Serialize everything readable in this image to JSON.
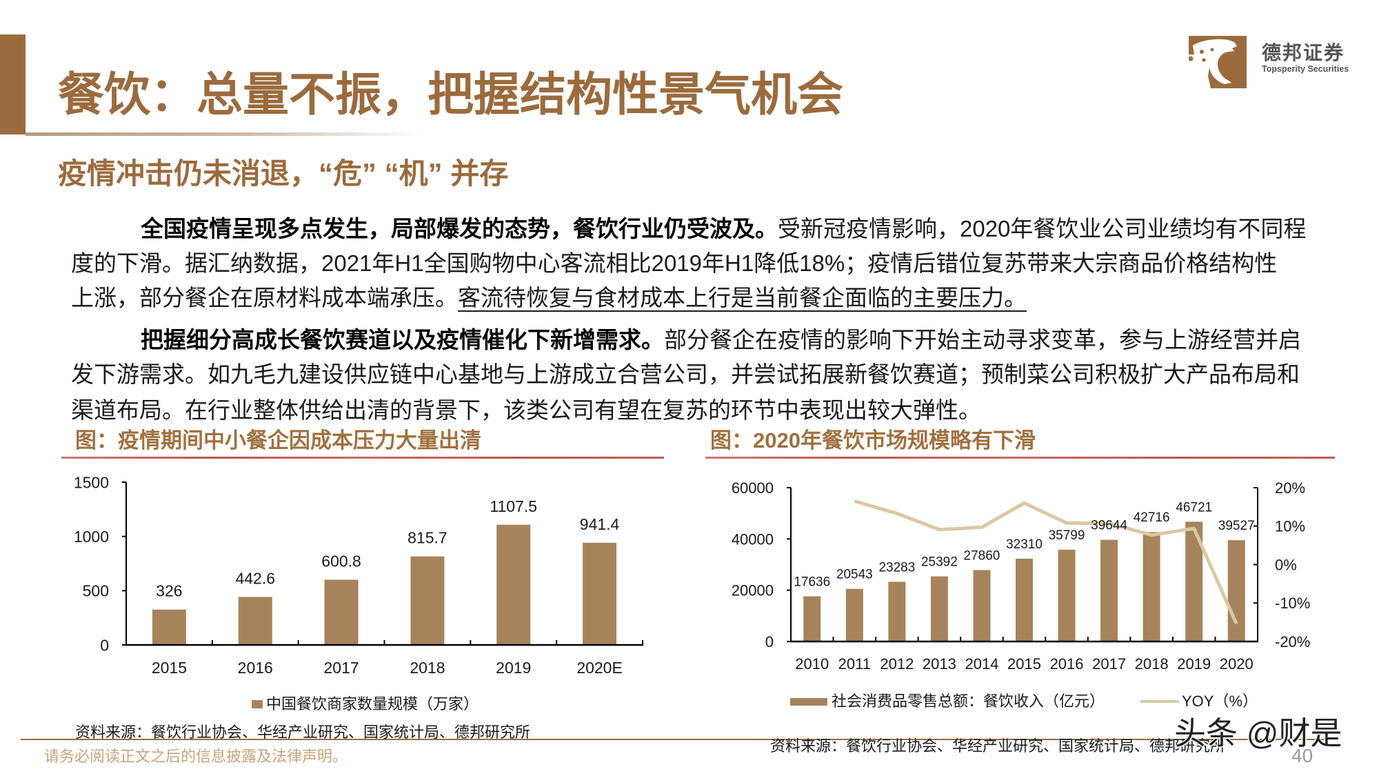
{
  "header": {
    "title": "餐饮：总量不振，把握结构性景气机会",
    "logo": {
      "icon": "leopard-t-logo-icon",
      "name_cn": "德邦证券",
      "name_en": "Topsperity Securities"
    }
  },
  "subtitle": "疫情冲击仍未消退，“危” “机” 并存",
  "body": {
    "paragraph_1": {
      "lead_bold": "全国疫情呈现多点发生，局部爆发的态势，餐饮行业仍受波及。",
      "line_1_rest": "受新冠疫情影响，2020年餐饮业公司业绩均有不同程",
      "line_2": "度的下滑。据汇纳数据，2021年H1全国购物中心客流相比2019年H1降低18%；疫情后错位复苏带来大宗商品价格结构性",
      "line_3_plain": "上涨，部分餐企在原材料成本端承压。",
      "line_3_underlined": "客流待恢复与食材成本上行是当前餐企面临的主要压力。"
    },
    "paragraph_2": {
      "lead_bold": "把握细分高成长餐饮赛道以及疫情催化下新增需求。",
      "line_1_rest": "部分餐企在疫情的影响下开始主动寻求变革，参与上游经营并启",
      "line_2": "发下游需求。如九毛九建设供应链中心基地与上游成立合营公司，并尝试拓展新餐饮赛道；预制菜公司积极扩大产品布局和",
      "line_3": "渠道布局。在行业整体供给出清的背景下，该类公司有望在复苏的环节中表现出较大弹性。"
    }
  },
  "figures": [
    {
      "title": "图：疫情期间中小餐企因成本压力大量出清",
      "legend": [
        {
          "label": "中国餐饮商家数量规模（万家）",
          "marker": "square"
        }
      ],
      "source": "资料来源：餐饮行业协会、华经产业研究、国家统计局、德邦研究所"
    },
    {
      "title": "图：2020年餐饮市场规模略有下滑",
      "legend": [
        {
          "label": "社会消费品零售总额：餐饮收入（亿元）",
          "marker": "bar"
        },
        {
          "label": "YOY（%）",
          "marker": "line"
        }
      ],
      "source": "资料来源：餐饮行业协会、华经产业研究、国家统计局、德邦研究所"
    }
  ],
  "chart_data": [
    {
      "type": "bar",
      "title": "图：疫情期间中小餐企因成本压力大量出清",
      "categories": [
        "2015",
        "2016",
        "2017",
        "2018",
        "2019",
        "2020E"
      ],
      "series": [
        {
          "name": "中国餐饮商家数量规模（万家）",
          "type": "bar",
          "axis": "left",
          "values": [
            326,
            442.6,
            600.8,
            815.7,
            1107.5,
            941.4
          ],
          "color": "#A6835B"
        }
      ],
      "value_labels": [
        "326",
        "442.6",
        "600.8",
        "815.7",
        "1107.5",
        "941.4"
      ],
      "xlabel": "",
      "ylabel": "",
      "ylim": [
        0,
        1500
      ],
      "yticks": [
        0,
        500,
        1000,
        1500
      ],
      "grid": false,
      "legend_position": "bottom"
    },
    {
      "type": "bar",
      "title": "图：2020年餐饮市场规模略有下滑",
      "categories": [
        "2010",
        "2011",
        "2012",
        "2013",
        "2014",
        "2015",
        "2016",
        "2017",
        "2018",
        "2019",
        "2020"
      ],
      "series": [
        {
          "name": "社会消费品零售总额：餐饮收入（亿元）",
          "type": "bar",
          "axis": "left",
          "values": [
            17636,
            20543,
            23283,
            25392,
            27860,
            32310,
            35799,
            39644,
            42716,
            46721,
            39527
          ],
          "color": "#A6835B"
        },
        {
          "name": "YOY（%）",
          "type": "line",
          "axis": "right",
          "values": [
            null,
            16.5,
            13.3,
            9.1,
            9.7,
            16.0,
            10.8,
            10.7,
            7.7,
            9.4,
            -15.4
          ],
          "color": "#D8C8A4"
        }
      ],
      "value_labels": [
        "17636",
        "20543",
        "23283",
        "25392",
        "27860",
        "32310",
        "35799",
        "39644",
        "42716",
        "46721",
        "39527"
      ],
      "xlabel": "",
      "ylabel": "",
      "ylim": [
        0,
        60000
      ],
      "yticks": [
        0,
        20000,
        40000,
        60000
      ],
      "ylim_right": [
        -20,
        20
      ],
      "yticks_right": [
        -20,
        -10,
        0,
        10,
        20
      ],
      "yticks_right_suffix": "%",
      "grid": false,
      "legend_position": "bottom"
    }
  ],
  "footer": {
    "disclaimer": "请务必阅读正文之后的信息披露及法律声明。",
    "page_number": "40",
    "watermark": "头条 @财是"
  },
  "colors": {
    "brand_brown": "#9B6B3D",
    "bar": "#A6835B",
    "yoy_line": "#D8C8A4",
    "figure_rule_red": "#C4504E",
    "disclaimer": "#C9A27A"
  }
}
